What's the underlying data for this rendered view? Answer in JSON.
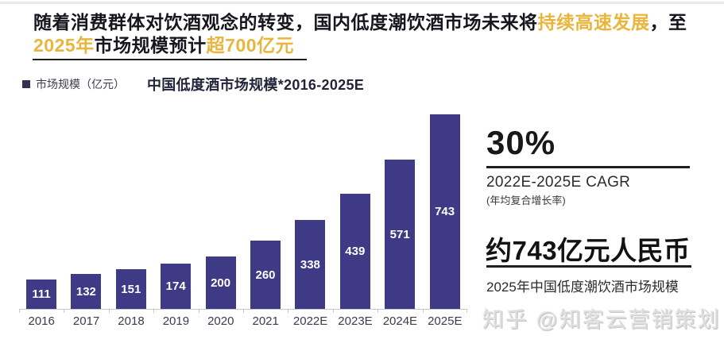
{
  "header": {
    "title_seg1": "随着消费群体对饮酒观念的转变，国内低度潮饮酒市场未来将",
    "title_seg2_highlight": "持续高速发展",
    "title_seg3": "，至",
    "title_seg4_highlight": "2025年",
    "title_seg5": "市场规模预计",
    "title_seg6_highlight": "超700亿元"
  },
  "chart_data": {
    "type": "bar",
    "title": "中国低度酒市场规模*2016-2025E",
    "legend": "市场规模（亿元）",
    "categories": [
      "2016",
      "2017",
      "2018",
      "2019",
      "2020",
      "2021",
      "2022E",
      "2023E",
      "2024E",
      "2025E"
    ],
    "values": [
      111,
      132,
      151,
      174,
      200,
      260,
      338,
      439,
      571,
      743
    ],
    "ylabel": "市场规模（亿元）",
    "ylim": [
      0,
      760
    ],
    "grid": false,
    "legend_position": "top-left",
    "value_labels": "inside-center-white",
    "bar_color": "#3f3a86"
  },
  "stats": {
    "cagr_value": "30%",
    "cagr_label": "2022E-2025E CAGR",
    "cagr_sublabel": "(年均复合增长率)",
    "market_value": "约743亿元人民币",
    "market_label": "2025年中国低度潮饮酒市场规模"
  },
  "watermark": "知乎 @知客云营销策划",
  "colors": {
    "bar": "#3f3a86",
    "highlight_yellow": "#e8b63c",
    "headline_dark": "#16161f",
    "axis": "#c9c9c9",
    "watermark_gray": "#dcdcdc"
  }
}
